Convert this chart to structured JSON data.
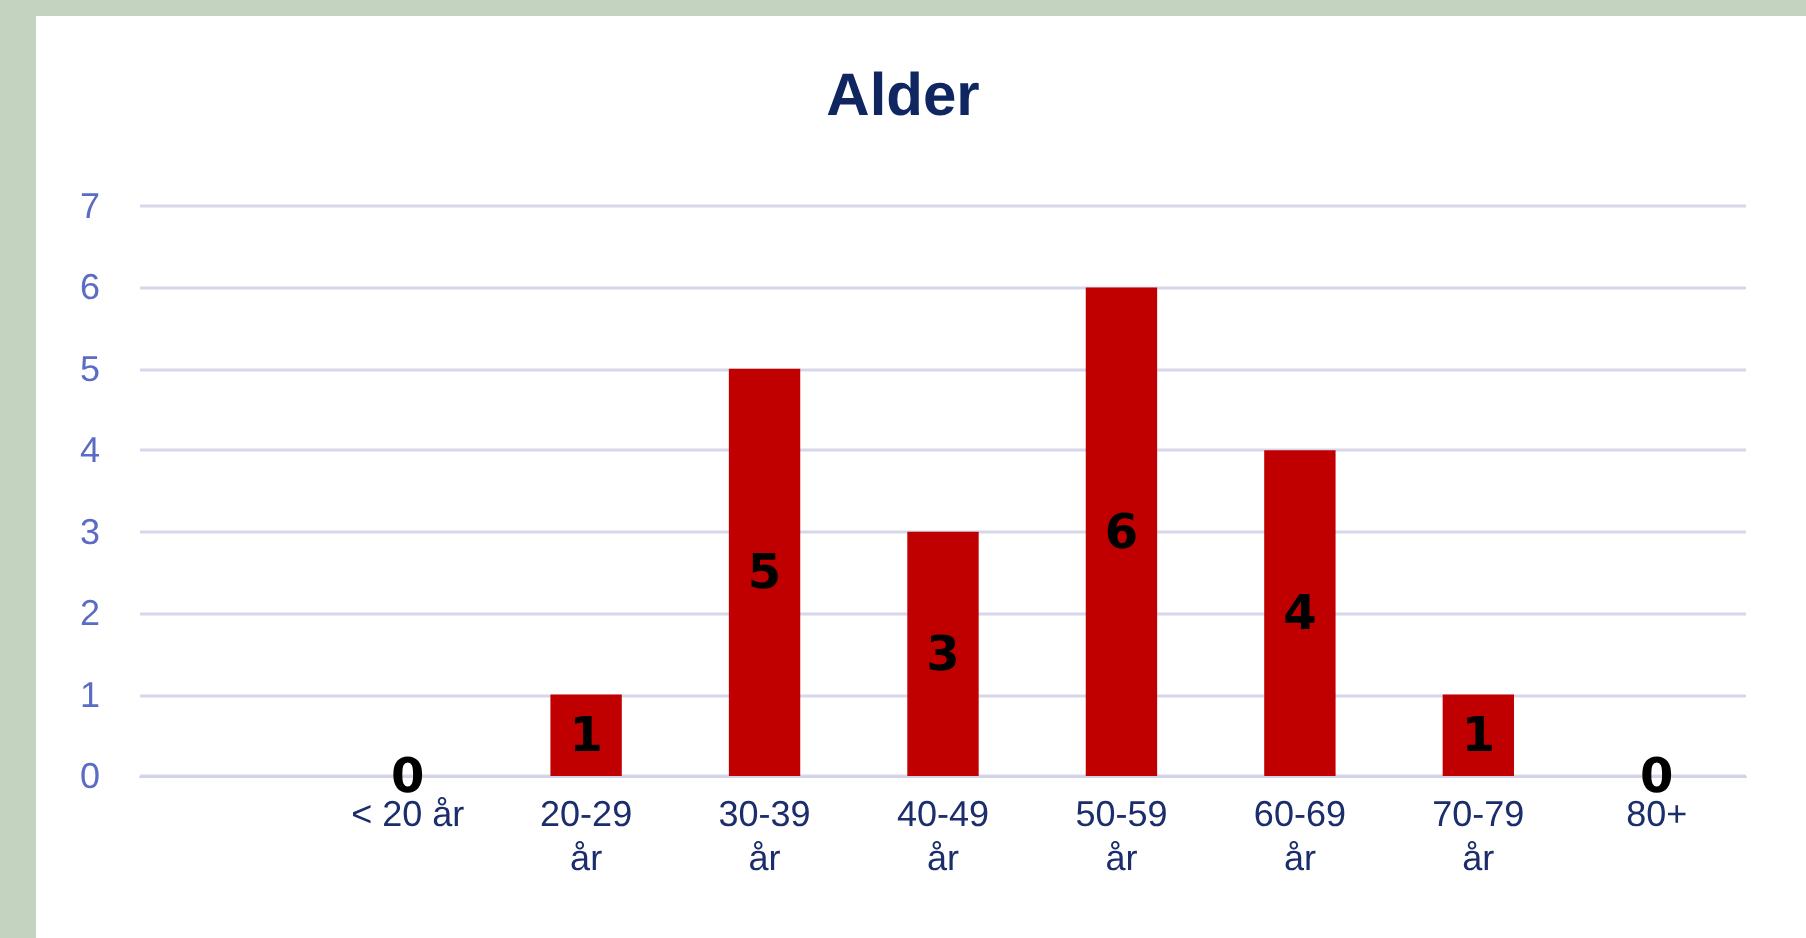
{
  "chart_data": {
    "type": "bar",
    "title": "Alder",
    "categories": [
      null,
      "< 20 år",
      "20-29\når",
      "30-39\når",
      "40-49\når",
      "50-59\når",
      "60-69\når",
      "70-79\når",
      "80+"
    ],
    "values": [
      null,
      0,
      1,
      5,
      3,
      6,
      4,
      1,
      0
    ],
    "color": "#c00000",
    "ylim": [
      0,
      7
    ],
    "yticks": [
      0,
      1,
      2,
      3,
      4,
      5,
      6,
      7
    ],
    "grid": "y",
    "data_labels": true
  }
}
